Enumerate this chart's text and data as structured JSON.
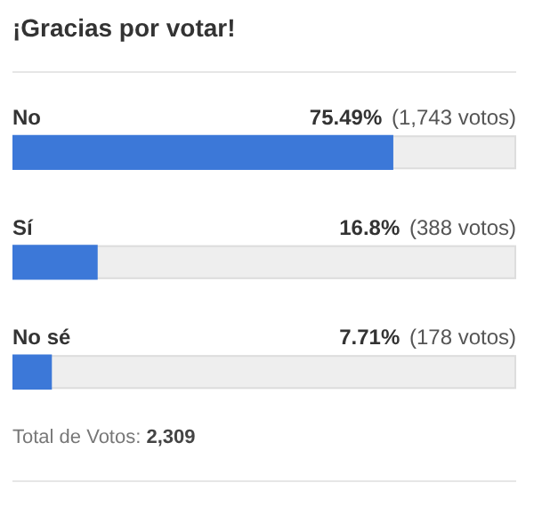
{
  "chart_data": {
    "type": "bar",
    "orientation": "horizontal",
    "title": "¡Gracias por votar!",
    "categories": [
      "No",
      "Sí",
      "No sé"
    ],
    "values": [
      75.49,
      16.8,
      7.71
    ],
    "value_labels": [
      "75.49% (1,743 votos)",
      "16.8% (388 votos)",
      "7.71% (178 votos)"
    ],
    "color": "#3c78d8",
    "xlim": [
      0,
      100
    ],
    "legend": false,
    "annotations": [
      "Total de Votos: 2,309"
    ]
  }
}
